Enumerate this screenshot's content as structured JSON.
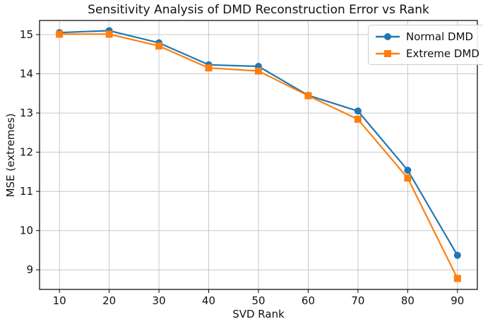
{
  "chart_data": {
    "type": "line",
    "title": "Sensitivity Analysis of DMD Reconstruction Error vs Rank",
    "xlabel": "SVD Rank",
    "ylabel": "MSE (extremes)",
    "x": [
      10,
      20,
      30,
      40,
      50,
      60,
      70,
      80,
      90
    ],
    "series": [
      {
        "name": "Normal DMD",
        "color": "#1f77b4",
        "marker": "circle",
        "values": [
          15.05,
          15.1,
          14.79,
          14.23,
          14.19,
          13.45,
          13.05,
          11.54,
          9.37
        ]
      },
      {
        "name": "Extreme DMD",
        "color": "#ff7f0e",
        "marker": "square",
        "values": [
          15.01,
          15.01,
          14.71,
          14.15,
          14.07,
          13.44,
          12.84,
          11.34,
          8.78
        ]
      }
    ],
    "xticks": [
      10,
      20,
      30,
      40,
      50,
      60,
      70,
      80,
      90
    ],
    "yticks": [
      9,
      10,
      11,
      12,
      13,
      14,
      15
    ],
    "xlim": [
      6,
      94
    ],
    "ylim": [
      8.5,
      15.36
    ],
    "grid": true,
    "legend_position": "upper right",
    "grid_color": "#c7c7c7",
    "axis_color": "#000000"
  }
}
